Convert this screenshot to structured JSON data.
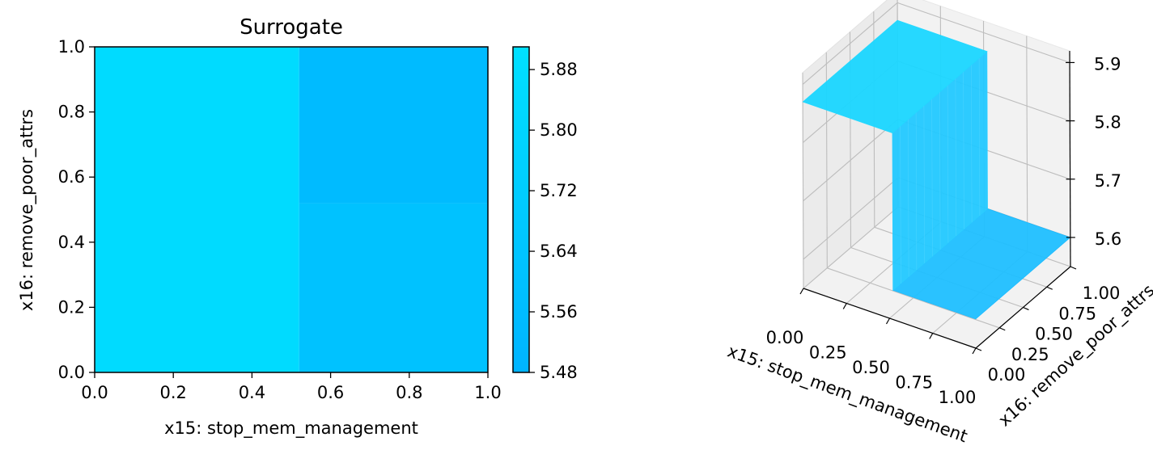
{
  "chart_data": [
    {
      "type": "heatmap",
      "title": "Surrogate",
      "xlabel": "x15: stop_mem_management",
      "ylabel": "x16: remove_poor_attrs",
      "xlim": [
        0,
        1
      ],
      "ylim": [
        0,
        1
      ],
      "xticks": [
        "0.0",
        "0.2",
        "0.4",
        "0.6",
        "0.8",
        "1.0"
      ],
      "yticks": [
        "0.0",
        "0.2",
        "0.4",
        "0.6",
        "0.8",
        "1.0"
      ],
      "x_split": 0.52,
      "y_split": 0.52,
      "cells": [
        {
          "x": [
            0,
            0.52
          ],
          "y": [
            0,
            1
          ],
          "value": 5.86
        },
        {
          "x": [
            0.52,
            1
          ],
          "y": [
            0,
            0.52
          ],
          "value": 5.62
        },
        {
          "x": [
            0.52,
            1
          ],
          "y": [
            0.52,
            1
          ],
          "value": 5.55
        }
      ],
      "colorbar": {
        "min": 5.48,
        "max": 5.91,
        "ticks": [
          "5.48",
          "5.56",
          "5.64",
          "5.72",
          "5.80",
          "5.88"
        ],
        "color_low": "#00b4ff",
        "color_high": "#00e0ff"
      },
      "grid": false
    },
    {
      "type": "surface",
      "xlabel": "x15: stop_mem_management",
      "ylabel": "x16: remove_poor_attrs",
      "xticks": [
        "0.00",
        "0.25",
        "0.50",
        "0.75",
        "1.00"
      ],
      "yticks": [
        "0.00",
        "0.25",
        "0.50",
        "0.75",
        "1.00"
      ],
      "zticks": [
        "5.6",
        "5.7",
        "5.8",
        "5.9"
      ],
      "zlim": [
        5.55,
        5.92
      ],
      "x_split": 0.52,
      "z_low": 5.6,
      "z_high": 5.87,
      "surface_color": "#00ccff",
      "grid": true
    }
  ]
}
